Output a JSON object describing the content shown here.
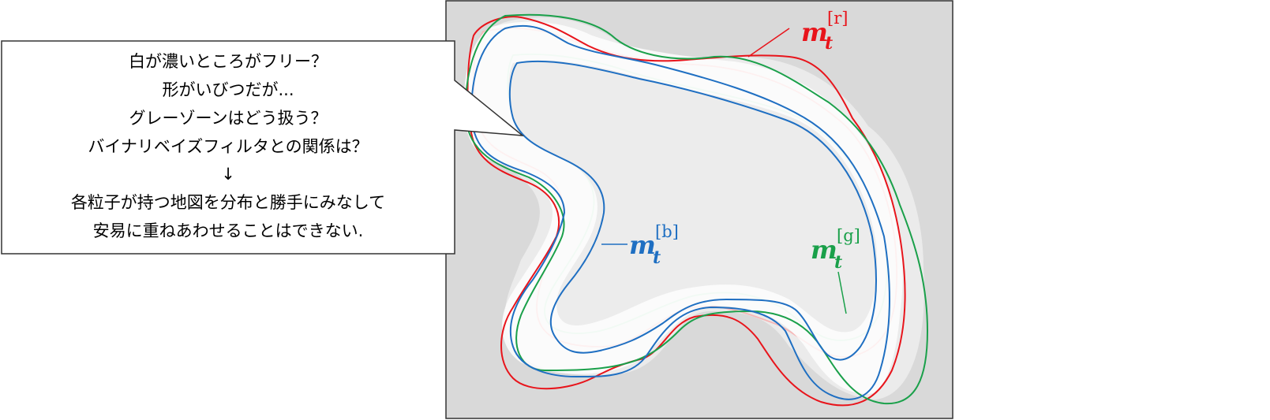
{
  "callout": {
    "lines": [
      "白が濃いところがフリー？",
      "形がいびつだが...",
      "グレーゾーンはどう扱う？",
      "バイナリベイズフィルタとの関係は？",
      "↓",
      "各粒子が持つ地図を分布と勝手にみなして",
      "安易に重ねあわせることはできない."
    ]
  },
  "maps": [
    {
      "id": "r",
      "base": "m",
      "sub": "t",
      "sup": "[r]",
      "color": "#e8141b"
    },
    {
      "id": "b",
      "base": "m",
      "sub": "t",
      "sup": "[b]",
      "color": "#1f6fc2"
    },
    {
      "id": "g",
      "base": "m",
      "sub": "t",
      "sup": "[g]",
      "color": "#1aa04a"
    }
  ],
  "colors": {
    "panel_fill": "#d9d9d9",
    "panel_border": "#333333",
    "free_space": "#ffffff",
    "overlap_gray": "#ebebeb"
  }
}
